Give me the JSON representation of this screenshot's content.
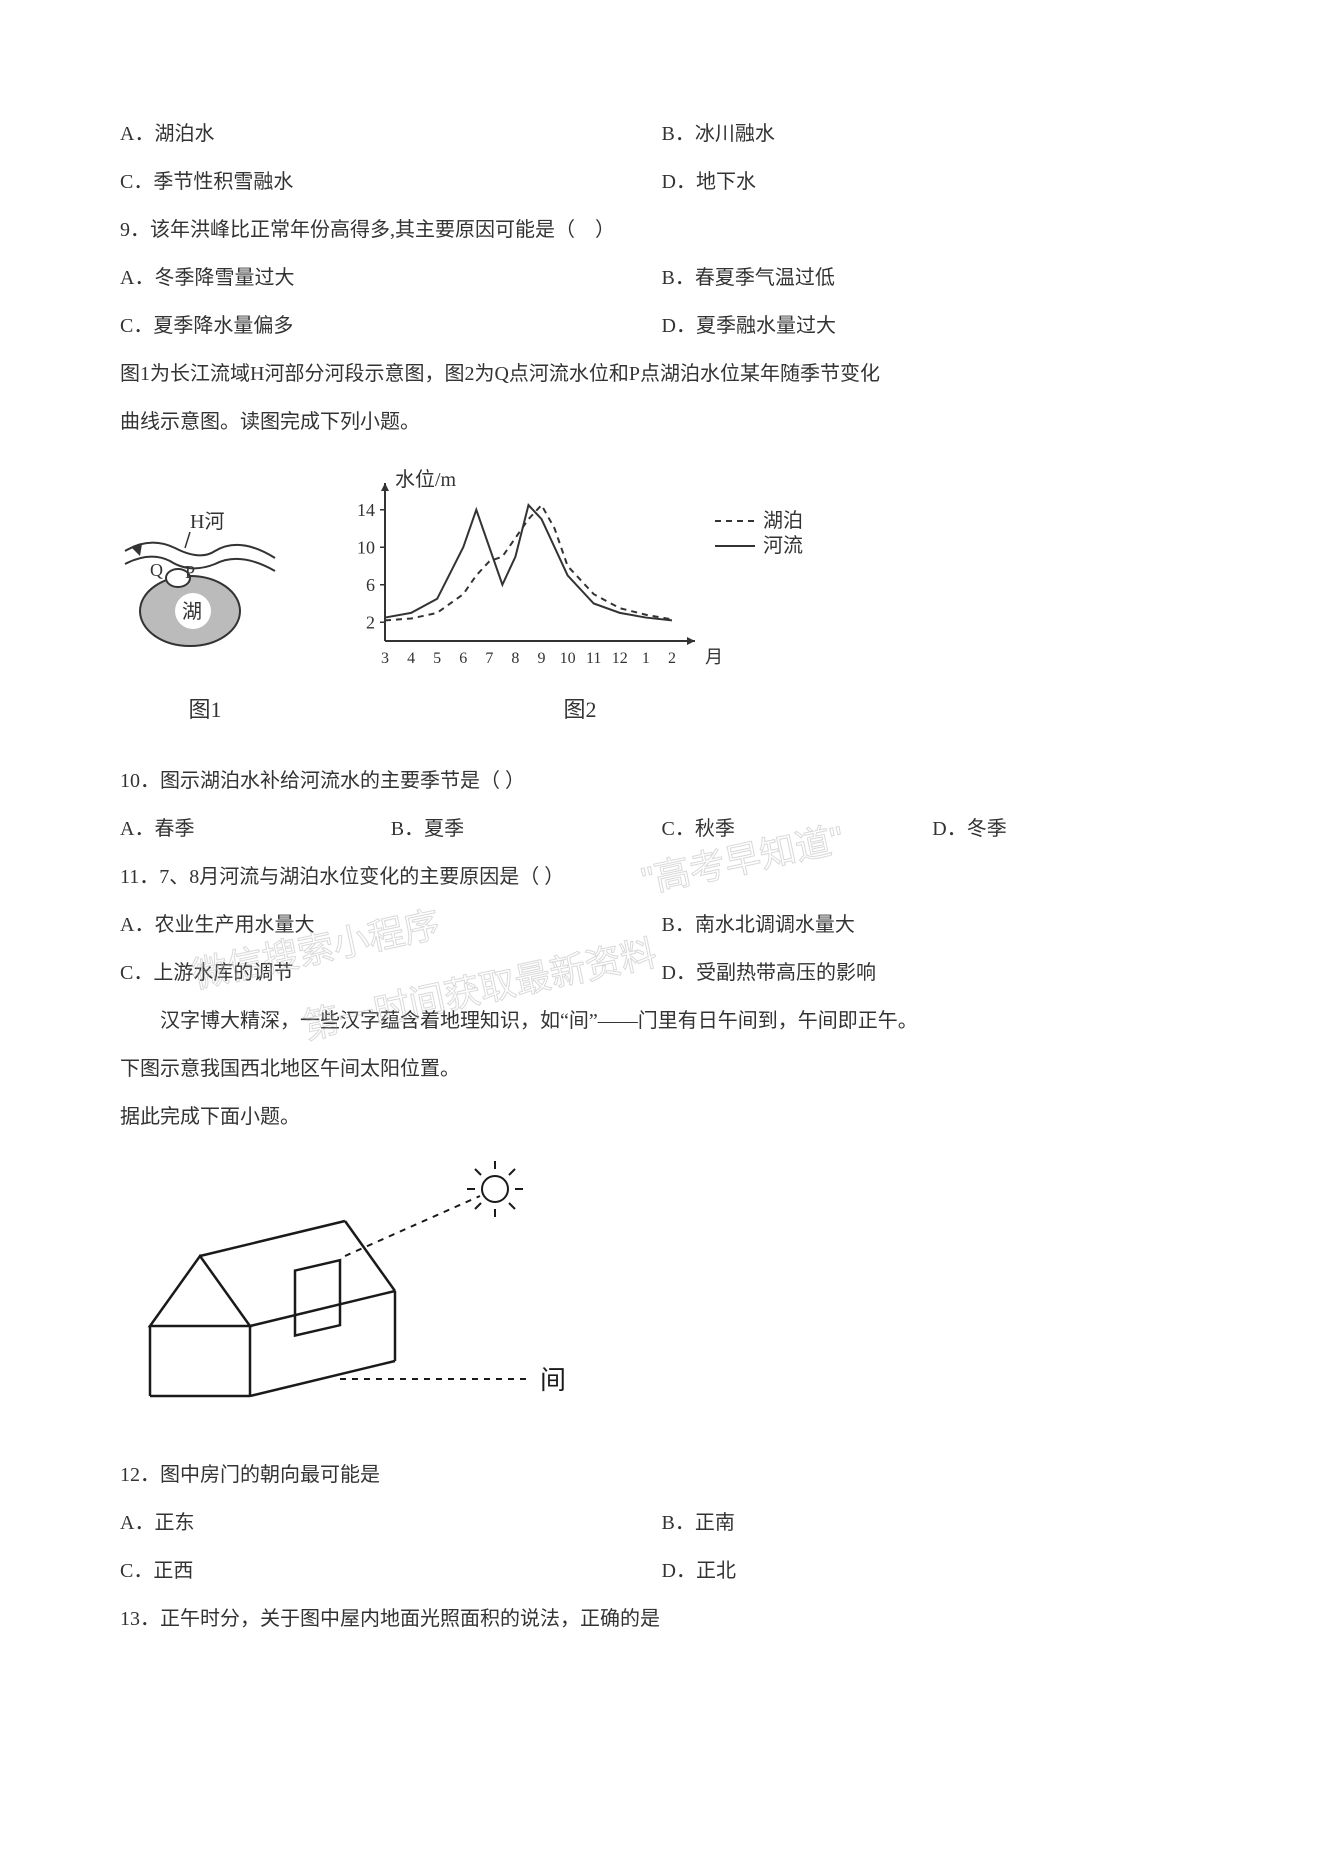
{
  "q8_options": {
    "a": "A．湖泊水",
    "b": "B．冰川融水",
    "c": "C．季节性积雪融水",
    "d": "D．地下水"
  },
  "q9": {
    "stem": "9．该年洪峰比正常年份高得多,其主要原因可能是（　）",
    "a": "A．冬季降雪量过大",
    "b": "B．春夏季气温过低",
    "c": "C．夏季降水量偏多",
    "d": "D．夏季融水量过大"
  },
  "figA_intro1": "图1为长江流域H河部分河段示意图，图2为Q点河流水位和P点湖泊水位某年随季节变化",
  "figA_intro2": "曲线示意图。读图完成下列小题。",
  "fig1": {
    "caption": "图1",
    "labels": {
      "h": "H河",
      "q": "Q",
      "p": "P",
      "lake": "湖"
    },
    "colors": {
      "line": "#333333",
      "fill": "#bbbbbb"
    }
  },
  "fig2": {
    "caption": "图2",
    "title": "水位/m",
    "xlabel": "月",
    "legend": {
      "lake": "湖泊",
      "river": "河流"
    },
    "yticks": [
      2,
      6,
      10,
      14
    ],
    "xticks": [
      "3",
      "4",
      "5",
      "6",
      "7",
      "8",
      "9",
      "10",
      "11",
      "12",
      "1",
      "2"
    ],
    "ylim": [
      0,
      16
    ],
    "river_series": [
      [
        3,
        2.5
      ],
      [
        4,
        3
      ],
      [
        5,
        4.5
      ],
      [
        6,
        10
      ],
      [
        6.5,
        14
      ],
      [
        7,
        10
      ],
      [
        7.5,
        6
      ],
      [
        8,
        9
      ],
      [
        8.5,
        14.5
      ],
      [
        9,
        13
      ],
      [
        10,
        7
      ],
      [
        11,
        4
      ],
      [
        12,
        3
      ],
      [
        13,
        2.5
      ],
      [
        14,
        2.2
      ]
    ],
    "lake_series": [
      [
        3,
        2.2
      ],
      [
        4,
        2.4
      ],
      [
        5,
        3
      ],
      [
        6,
        5
      ],
      [
        6.5,
        7
      ],
      [
        7,
        8.5
      ],
      [
        7.5,
        9
      ],
      [
        8,
        11
      ],
      [
        8.5,
        13
      ],
      [
        9,
        14.5
      ],
      [
        9.5,
        12
      ],
      [
        10,
        8
      ],
      [
        11,
        5
      ],
      [
        12,
        3.5
      ],
      [
        13,
        2.8
      ],
      [
        14,
        2.3
      ]
    ],
    "colors": {
      "axis": "#333333",
      "river": "#333333",
      "lake": "#333333"
    },
    "river_dash": "none",
    "lake_dash": "6,5"
  },
  "q10": {
    "stem": "10．图示湖泊水补给河流水的主要季节是（ ）",
    "a": "A．春季",
    "b": "B．夏季",
    "c": "C．秋季",
    "d": "D．冬季"
  },
  "q11": {
    "stem": "11．7、8月河流与湖泊水位变化的主要原因是（ ）",
    "a": "A．农业生产用水量大",
    "b": "B．南水北调调水量大",
    "c": "C．上游水库的调节",
    "d": "D．受副热带高压的影响"
  },
  "figB_intro1": "汉字博大精深，一些汉字蕴含着地理知识，如“间”——门里有日午间到，午间即正午。",
  "figB_intro2": "下图示意我国西北地区午间太阳位置。",
  "figB_intro3": "据此完成下面小题。",
  "fig3": {
    "label": "间",
    "colors": {
      "line": "#1a1a1a",
      "sun": "#1a1a1a"
    }
  },
  "q12": {
    "stem": "12．图中房门的朝向最可能是",
    "a": "A．正东",
    "b": "B．正南",
    "c": "C．正西",
    "d": "D．正北"
  },
  "q13": {
    "stem": "13．正午时分，关于图中屋内地面光照面积的说法，正确的是"
  },
  "watermarks": {
    "w1": "微信搜索小程序",
    "w2": "\"高考早知道\"",
    "w3": "第一时间获取最新资料"
  }
}
